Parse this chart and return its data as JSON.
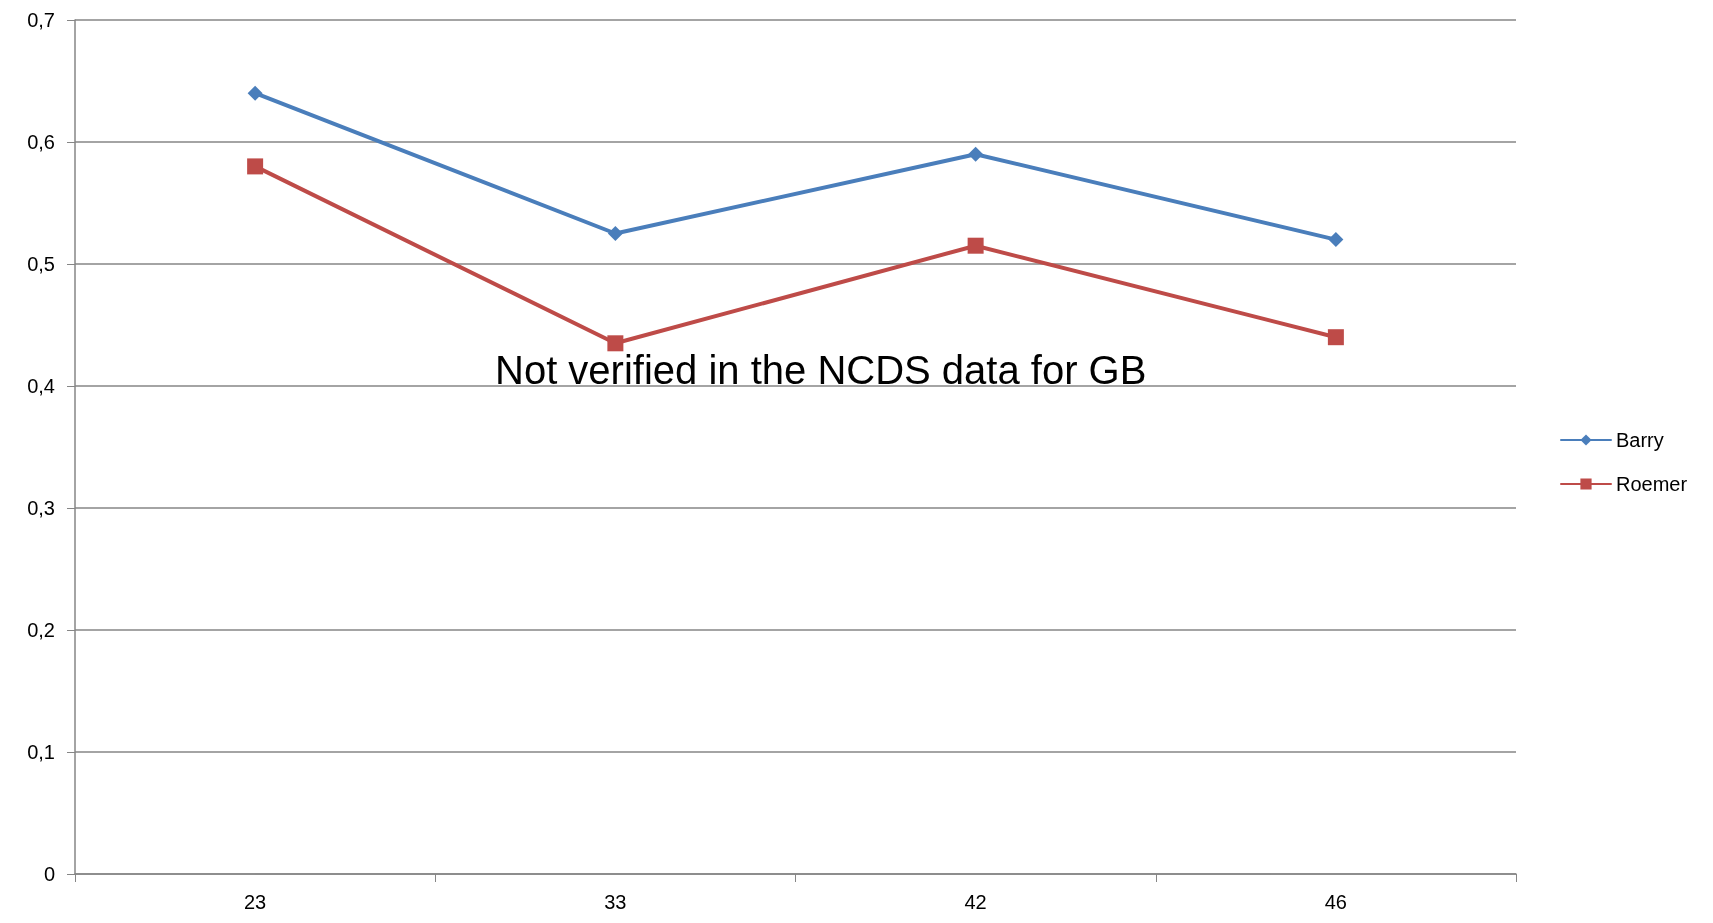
{
  "chart_data": {
    "type": "line",
    "categories": [
      "23",
      "33",
      "42",
      "46"
    ],
    "series": [
      {
        "name": "Barry",
        "color": "#4a7ebb",
        "marker": "diamond",
        "values": [
          0.64,
          0.525,
          0.59,
          0.52
        ]
      },
      {
        "name": "Roemer",
        "color": "#be4b48",
        "marker": "square",
        "values": [
          0.58,
          0.435,
          0.515,
          0.44
        ]
      }
    ],
    "ylim": [
      0,
      0.7
    ],
    "yticks": [
      {
        "value": 0,
        "label": "0"
      },
      {
        "value": 0.1,
        "label": "0,1"
      },
      {
        "value": 0.2,
        "label": "0,2"
      },
      {
        "value": 0.3,
        "label": "0,3"
      },
      {
        "value": 0.4,
        "label": "0,4"
      },
      {
        "value": 0.5,
        "label": "0,5"
      },
      {
        "value": 0.6,
        "label": "0,6"
      },
      {
        "value": 0.7,
        "label": "0,7"
      }
    ],
    "grid": "y",
    "legend": "right",
    "line_style": "solid",
    "annotations": [
      "Not verified in the NCDS data for GB"
    ]
  }
}
